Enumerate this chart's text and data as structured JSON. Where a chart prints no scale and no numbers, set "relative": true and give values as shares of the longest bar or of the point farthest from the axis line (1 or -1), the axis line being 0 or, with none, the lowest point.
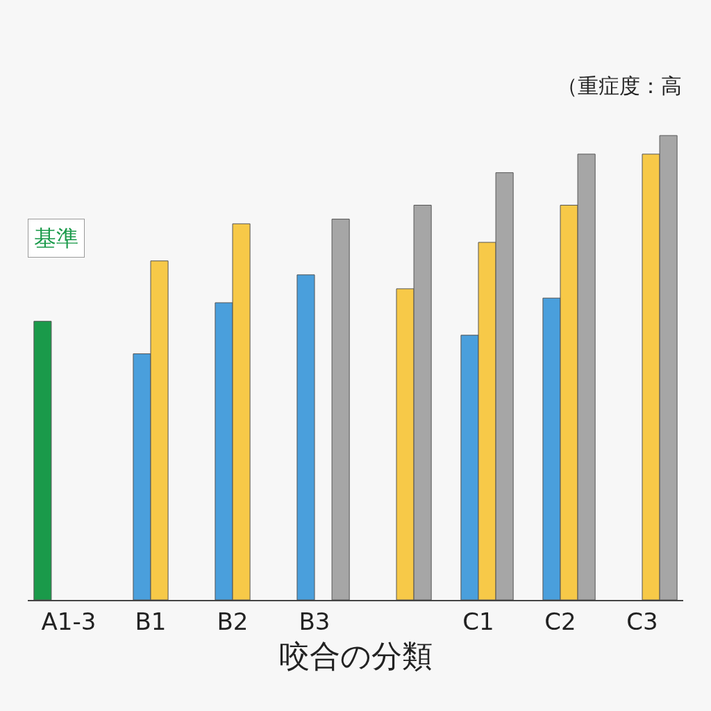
{
  "chart_data": {
    "type": "bar",
    "relative": true,
    "xlabel": "咬合の分類",
    "categories": [
      "A1-3",
      "B1",
      "B2",
      "B3",
      null,
      "C1",
      "C2",
      "C3"
    ],
    "series": [
      {
        "color": "#1a9a4a",
        "values": [
          0.6,
          null,
          null,
          null,
          null,
          null,
          null,
          null
        ]
      },
      {
        "color": "#4a9fdc",
        "values": [
          null,
          0.53,
          0.64,
          0.7,
          null,
          0.57,
          0.65,
          null
        ]
      },
      {
        "color": "#f7c948",
        "values": [
          null,
          0.73,
          0.81,
          null,
          0.67,
          0.77,
          0.85,
          0.96
        ]
      },
      {
        "color": "#a6a6a6",
        "values": [
          null,
          null,
          null,
          0.82,
          0.85,
          0.92,
          0.96,
          1
        ]
      }
    ],
    "annotations": [
      "基準",
      "（重症度：高"
    ]
  }
}
